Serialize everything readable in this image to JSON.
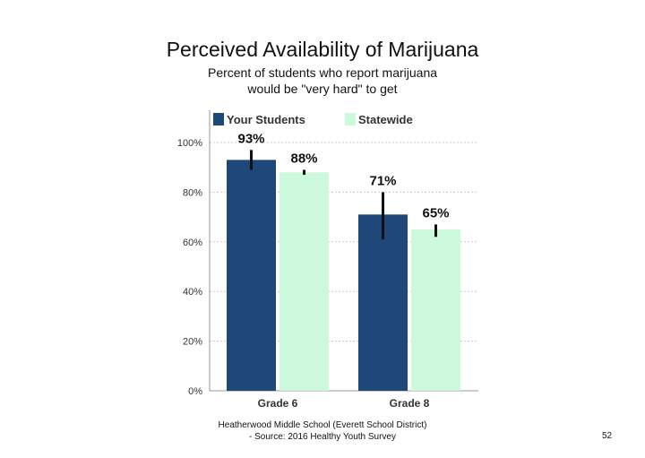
{
  "title": "Perceived Availability of Marijuana",
  "subtitle_lines": [
    "Percent of students who report marijuana",
    "would be \"very hard\" to get"
  ],
  "footer_lines": [
    "Heatherwood Middle School (Everett School District)",
    "- Source: 2016 Healthy Youth Survey"
  ],
  "page_number": "52",
  "colors": {
    "your_students": "#1f4878",
    "statewide": "#ccf8dc",
    "grid": "#c8c8c8",
    "axis": "#999999"
  },
  "chart_data": {
    "type": "bar",
    "categories": [
      "Grade 6",
      "Grade 8"
    ],
    "series": [
      {
        "name": "Your Students",
        "values": [
          93,
          71
        ],
        "labels": [
          "93%",
          "71%"
        ],
        "error": [
          [
            89,
            97
          ],
          [
            61,
            80
          ]
        ]
      },
      {
        "name": "Statewide",
        "values": [
          88,
          65
        ],
        "labels": [
          "88%",
          "65%"
        ],
        "error": [
          [
            87,
            89
          ],
          [
            62,
            67
          ]
        ]
      }
    ],
    "ylim": [
      0,
      113
    ],
    "yticks": [
      0,
      20,
      40,
      60,
      80,
      100
    ],
    "ytick_labels": [
      "0%",
      "20%",
      "40%",
      "60%",
      "80%",
      "100%"
    ],
    "grid": true,
    "legend": "top"
  }
}
